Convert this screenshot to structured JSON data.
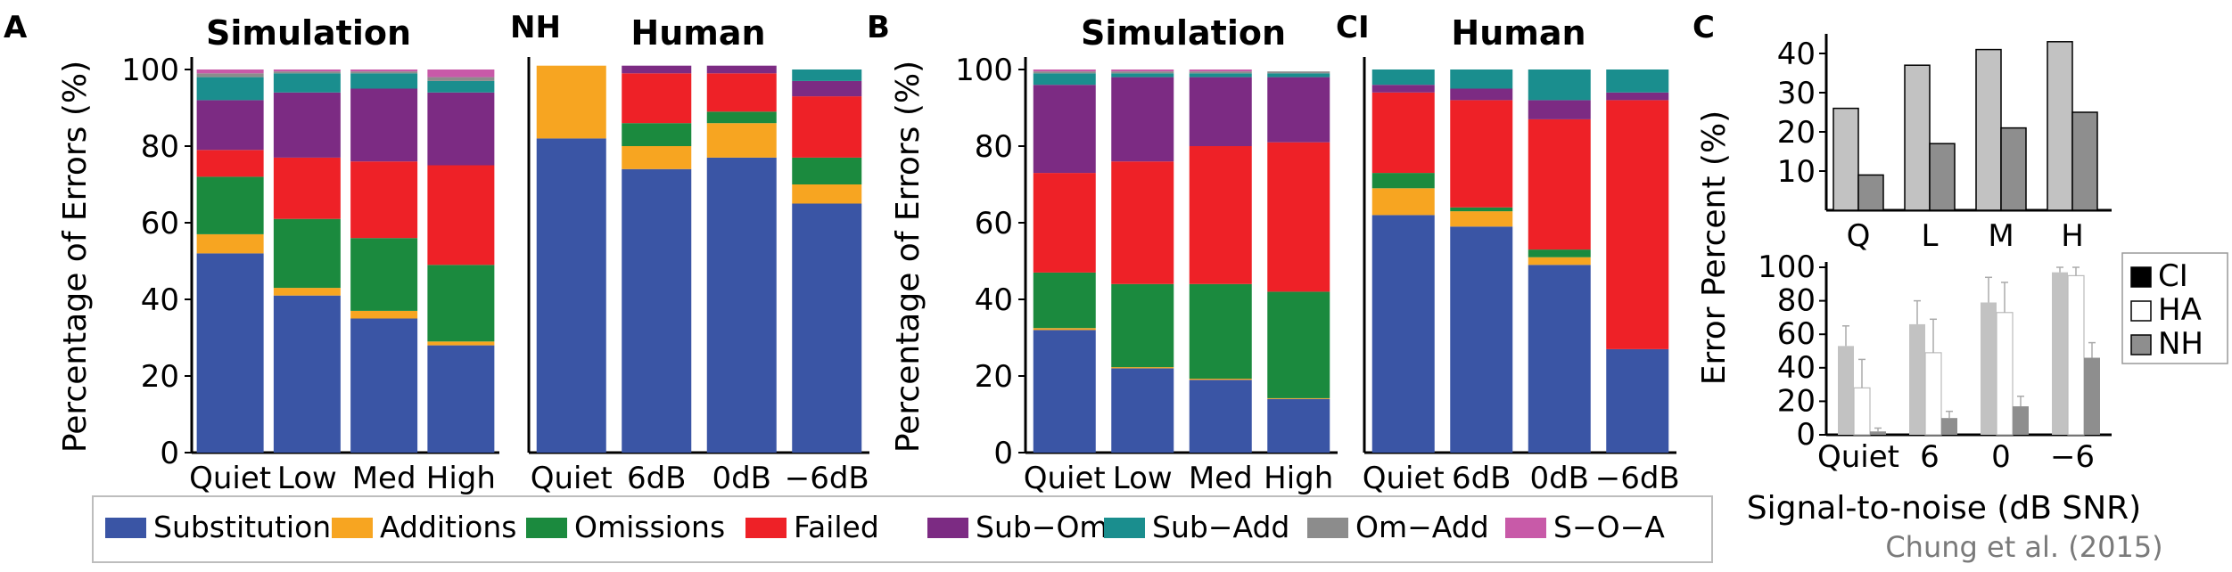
{
  "panel_letters": {
    "A": "A",
    "B": "B",
    "C": "C",
    "NH": "NH",
    "CI": "CI"
  },
  "source_credit": "Chung et al. (2015)",
  "ylabel_ab": "Percentage of Errors (%)",
  "ylabel_c": "Error Percent (%)",
  "xlabel_c": "Signal-to-noise (dB SNR)",
  "legend": [
    {
      "label": "Substitutions",
      "color": "#3a55a5"
    },
    {
      "label": "Additions",
      "color": "#f7a521"
    },
    {
      "label": "Omissions",
      "color": "#1b8a3e"
    },
    {
      "label": "Failed",
      "color": "#ee2127"
    },
    {
      "label": "Sub-Om",
      "color": "#7c2b83"
    },
    {
      "label": "Sub-Add",
      "color": "#1a8e8e"
    },
    {
      "label": "Om-Add",
      "color": "#8c8c8c"
    },
    {
      "label": "S-O-A",
      "color": "#c85aa8"
    }
  ],
  "chart_data": [
    {
      "id": "A-sim",
      "type": "bar",
      "stacked": true,
      "title": "Simulation",
      "categories": [
        "Quiet",
        "Low",
        "Med",
        "High"
      ],
      "ylim": [
        0,
        100
      ],
      "yticks": [
        0,
        20,
        40,
        60,
        80,
        100
      ],
      "series": [
        {
          "name": "Substitutions",
          "values": [
            52,
            41,
            35,
            28
          ]
        },
        {
          "name": "Additions",
          "values": [
            5,
            2,
            2,
            1
          ]
        },
        {
          "name": "Omissions",
          "values": [
            15,
            18,
            19,
            20
          ]
        },
        {
          "name": "Failed",
          "values": [
            7,
            16,
            20,
            26
          ]
        },
        {
          "name": "Sub-Om",
          "values": [
            13,
            17,
            19,
            19
          ]
        },
        {
          "name": "Sub-Add",
          "values": [
            6,
            5,
            4,
            3
          ]
        },
        {
          "name": "Om-Add",
          "values": [
            1,
            0.5,
            0.5,
            1
          ]
        },
        {
          "name": "S-O-A",
          "values": [
            1,
            0.5,
            0.5,
            2
          ]
        }
      ]
    },
    {
      "id": "A-human",
      "type": "bar",
      "stacked": true,
      "title": "Human",
      "categories": [
        "Quiet",
        "6dB",
        "0dB",
        "-6dB"
      ],
      "ylim": [
        0,
        100
      ],
      "series": [
        {
          "name": "Substitutions",
          "values": [
            82,
            74,
            77,
            65
          ]
        },
        {
          "name": "Additions",
          "values": [
            19,
            6,
            9,
            5
          ]
        },
        {
          "name": "Omissions",
          "values": [
            0,
            6,
            3,
            7
          ]
        },
        {
          "name": "Failed",
          "values": [
            0,
            13,
            10,
            16
          ]
        },
        {
          "name": "Sub-Om",
          "values": [
            0,
            2,
            2,
            4
          ]
        },
        {
          "name": "Sub-Add",
          "values": [
            0,
            0,
            0,
            3
          ]
        },
        {
          "name": "Om-Add",
          "values": [
            0,
            0,
            0,
            0
          ]
        },
        {
          "name": "S-O-A",
          "values": [
            0,
            0,
            0,
            0
          ]
        }
      ]
    },
    {
      "id": "B-sim",
      "type": "bar",
      "stacked": true,
      "title": "Simulation",
      "categories": [
        "Quiet",
        "Low",
        "Med",
        "High"
      ],
      "ylim": [
        0,
        100
      ],
      "yticks": [
        0,
        20,
        40,
        60,
        80,
        100
      ],
      "series": [
        {
          "name": "Substitutions",
          "values": [
            32,
            22,
            19,
            14
          ]
        },
        {
          "name": "Additions",
          "values": [
            0.5,
            0.3,
            0.3,
            0.2
          ]
        },
        {
          "name": "Omissions",
          "values": [
            14.5,
            21.7,
            24.7,
            27.8
          ]
        },
        {
          "name": "Failed",
          "values": [
            26,
            32,
            36,
            39
          ]
        },
        {
          "name": "Sub-Om",
          "values": [
            23,
            22,
            18,
            17
          ]
        },
        {
          "name": "Sub-Add",
          "values": [
            3,
            1,
            1,
            1
          ]
        },
        {
          "name": "Om-Add",
          "values": [
            0.5,
            0.5,
            0.5,
            0.5
          ]
        },
        {
          "name": "S-O-A",
          "values": [
            0.5,
            0.5,
            0.5,
            0
          ]
        }
      ]
    },
    {
      "id": "B-human",
      "type": "bar",
      "stacked": true,
      "title": "Human",
      "categories": [
        "Quiet",
        "6dB",
        "0dB",
        "-6dB"
      ],
      "ylim": [
        0,
        100
      ],
      "series": [
        {
          "name": "Substitutions",
          "values": [
            62,
            59,
            49,
            27
          ]
        },
        {
          "name": "Additions",
          "values": [
            7,
            4,
            2,
            0
          ]
        },
        {
          "name": "Omissions",
          "values": [
            4,
            1,
            2,
            0
          ]
        },
        {
          "name": "Failed",
          "values": [
            21,
            28,
            34,
            65
          ]
        },
        {
          "name": "Sub-Om",
          "values": [
            2,
            3,
            5,
            2
          ]
        },
        {
          "name": "Sub-Add",
          "values": [
            4,
            5,
            8,
            6
          ]
        },
        {
          "name": "Om-Add",
          "values": [
            0,
            0,
            0,
            0
          ]
        },
        {
          "name": "S-O-A",
          "values": [
            0,
            0,
            0,
            0
          ]
        }
      ]
    },
    {
      "id": "C-top",
      "type": "bar",
      "categories": [
        "Q",
        "L",
        "M",
        "H"
      ],
      "ylim": [
        0,
        45
      ],
      "yticks": [
        10,
        20,
        30,
        40
      ],
      "series": [
        {
          "color": "#c2c2c2",
          "values": [
            26,
            37,
            41,
            43
          ]
        },
        {
          "color": "#8e8e8e",
          "values": [
            9,
            17,
            21,
            25
          ]
        }
      ]
    },
    {
      "id": "C-bottom",
      "type": "bar",
      "categories": [
        "Quiet",
        "6",
        "0",
        "-6"
      ],
      "ylim": [
        0,
        100
      ],
      "yticks": [
        0,
        20,
        40,
        60,
        80,
        100
      ],
      "xlabel": "Signal-to-noise (dB SNR)",
      "legend": [
        {
          "name": "CI",
          "color": "#000000"
        },
        {
          "name": "HA",
          "color": "#ffffff"
        },
        {
          "name": "NH",
          "color": "#8e8e8e"
        }
      ],
      "series": [
        {
          "name": "CI",
          "color": "#c2c2c2",
          "values": [
            53,
            66,
            79,
            97
          ],
          "errors": [
            12,
            14,
            15,
            3
          ]
        },
        {
          "name": "HA",
          "color": "#ffffff",
          "values": [
            28,
            49,
            73,
            95
          ],
          "errors": [
            17,
            20,
            18,
            5
          ]
        },
        {
          "name": "NH",
          "color": "#8e8e8e",
          "values": [
            2,
            10,
            17,
            46
          ],
          "errors": [
            2,
            4,
            6,
            9
          ]
        }
      ]
    }
  ]
}
